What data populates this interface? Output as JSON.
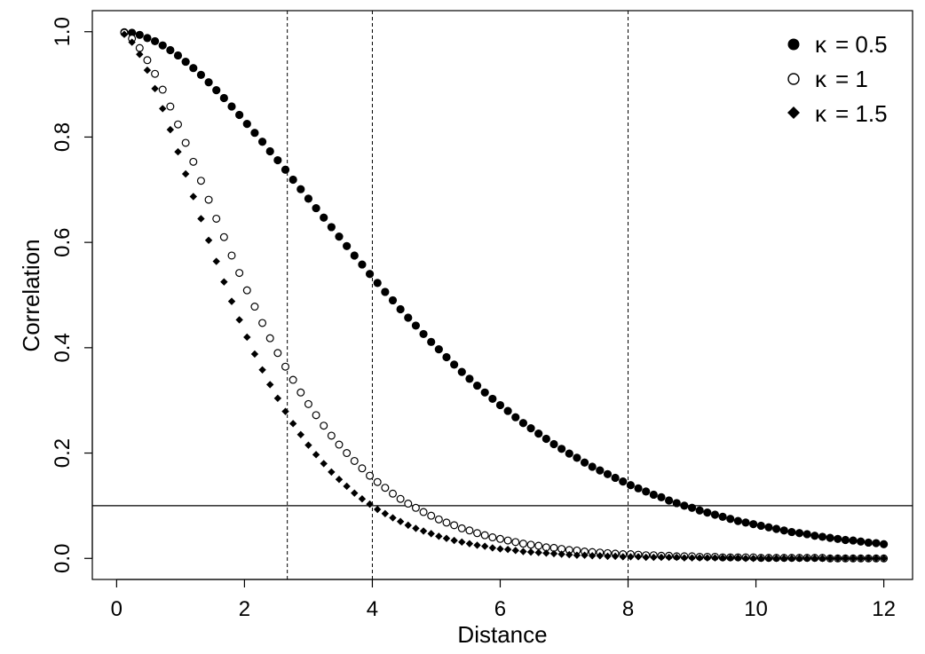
{
  "chart_data": {
    "type": "scatter",
    "title": "",
    "xlabel": "Distance",
    "ylabel": "Correlation",
    "xlim": [
      -0.38,
      12.45
    ],
    "ylim": [
      -0.04,
      1.04
    ],
    "xticks": [
      0,
      2,
      4,
      6,
      8,
      10,
      12
    ],
    "xtick_labels": [
      "0",
      "2",
      "4",
      "6",
      "8",
      "10",
      "12"
    ],
    "yticks": [
      0.0,
      0.2,
      0.4,
      0.6,
      0.8,
      1.0
    ],
    "ytick_labels": [
      "0.0",
      "0.2",
      "0.4",
      "0.6",
      "0.8",
      "1.0"
    ],
    "legend_position": "top-right",
    "reference_lines": {
      "horizontal": [
        {
          "y": 0.1,
          "style": "solid"
        }
      ],
      "vertical": [
        {
          "x": 2.67,
          "style": "dashed"
        },
        {
          "x": 4,
          "style": "dashed"
        },
        {
          "x": 8,
          "style": "dashed"
        }
      ]
    },
    "x": [
      0.12,
      0.24,
      0.36,
      0.48,
      0.6,
      0.72,
      0.84,
      0.96,
      1.08,
      1.2,
      1.32,
      1.44,
      1.56,
      1.68,
      1.8,
      1.92,
      2.04,
      2.16,
      2.28,
      2.4,
      2.52,
      2.64,
      2.76,
      2.88,
      3.0,
      3.12,
      3.24,
      3.36,
      3.48,
      3.6,
      3.72,
      3.84,
      3.96,
      4.08,
      4.2,
      4.32,
      4.44,
      4.56,
      4.68,
      4.8,
      4.92,
      5.04,
      5.16,
      5.28,
      5.4,
      5.52,
      5.64,
      5.76,
      5.88,
      6.0,
      6.12,
      6.24,
      6.36,
      6.48,
      6.6,
      6.72,
      6.84,
      6.96,
      7.08,
      7.2,
      7.32,
      7.44,
      7.56,
      7.68,
      7.8,
      7.92,
      8.04,
      8.16,
      8.28,
      8.4,
      8.52,
      8.64,
      8.76,
      8.88,
      9.0,
      9.12,
      9.24,
      9.36,
      9.48,
      9.6,
      9.72,
      9.84,
      9.96,
      10.08,
      10.2,
      10.32,
      10.44,
      10.56,
      10.68,
      10.8,
      10.92,
      11.04,
      11.16,
      11.28,
      11.4,
      11.52,
      11.64,
      11.76,
      11.88,
      12.0
    ],
    "series": [
      {
        "name": "κ = 0.5",
        "kappa_label": "κ",
        "value_label": "= 0.5",
        "marker": "filled-circle",
        "values": [
          0.999,
          0.998,
          0.994,
          0.988,
          0.982,
          0.974,
          0.965,
          0.955,
          0.943,
          0.931,
          0.918,
          0.904,
          0.889,
          0.874,
          0.858,
          0.842,
          0.825,
          0.808,
          0.791,
          0.773,
          0.756,
          0.738,
          0.719,
          0.701,
          0.683,
          0.665,
          0.647,
          0.629,
          0.611,
          0.593,
          0.575,
          0.558,
          0.54,
          0.523,
          0.506,
          0.49,
          0.473,
          0.457,
          0.442,
          0.426,
          0.411,
          0.397,
          0.382,
          0.368,
          0.354,
          0.341,
          0.328,
          0.315,
          0.303,
          0.291,
          0.28,
          0.268,
          0.257,
          0.247,
          0.237,
          0.227,
          0.217,
          0.208,
          0.199,
          0.191,
          0.182,
          0.174,
          0.167,
          0.16,
          0.153,
          0.146,
          0.139,
          0.133,
          0.127,
          0.121,
          0.116,
          0.11,
          0.105,
          0.1,
          0.096,
          0.091,
          0.087,
          0.083,
          0.079,
          0.075,
          0.071,
          0.068,
          0.065,
          0.062,
          0.059,
          0.056,
          0.053,
          0.05,
          0.048,
          0.046,
          0.043,
          0.041,
          0.039,
          0.037,
          0.035,
          0.034,
          0.032,
          0.03,
          0.029,
          0.027
        ]
      },
      {
        "name": "κ = 1",
        "kappa_label": "κ",
        "value_label": "= 1",
        "marker": "open-circle",
        "values": [
          0.998,
          0.987,
          0.969,
          0.946,
          0.92,
          0.89,
          0.858,
          0.824,
          0.789,
          0.753,
          0.717,
          0.681,
          0.645,
          0.61,
          0.575,
          0.542,
          0.509,
          0.478,
          0.447,
          0.418,
          0.39,
          0.364,
          0.339,
          0.315,
          0.293,
          0.272,
          0.252,
          0.233,
          0.216,
          0.2,
          0.185,
          0.171,
          0.157,
          0.145,
          0.134,
          0.123,
          0.113,
          0.104,
          0.096,
          0.088,
          0.081,
          0.074,
          0.068,
          0.063,
          0.057,
          0.053,
          0.048,
          0.044,
          0.04,
          0.037,
          0.034,
          0.031,
          0.028,
          0.026,
          0.024,
          0.021,
          0.02,
          0.018,
          0.016,
          0.015,
          0.013,
          0.012,
          0.011,
          0.01,
          0.009,
          0.008,
          0.008,
          0.007,
          0.006,
          0.006,
          0.005,
          0.005,
          0.004,
          0.004,
          0.004,
          0.003,
          0.003,
          0.003,
          0.002,
          0.002,
          0.002,
          0.002,
          0.002,
          0.001,
          0.001,
          0.001,
          0.001,
          0.001,
          0.001,
          0.001,
          0.001,
          0.001,
          0.0,
          0.0,
          0.0,
          0.0,
          0.0,
          0.0,
          0.0,
          0.0
        ]
      },
      {
        "name": "κ = 1.5",
        "kappa_label": "κ",
        "value_label": "= 1.5",
        "marker": "filled-diamond",
        "values": [
          0.995,
          0.98,
          0.957,
          0.927,
          0.892,
          0.854,
          0.814,
          0.772,
          0.73,
          0.687,
          0.645,
          0.604,
          0.564,
          0.525,
          0.488,
          0.453,
          0.42,
          0.388,
          0.358,
          0.33,
          0.304,
          0.279,
          0.256,
          0.235,
          0.215,
          0.197,
          0.18,
          0.164,
          0.15,
          0.137,
          0.124,
          0.113,
          0.103,
          0.093,
          0.085,
          0.077,
          0.07,
          0.063,
          0.057,
          0.052,
          0.047,
          0.042,
          0.038,
          0.034,
          0.031,
          0.028,
          0.025,
          0.023,
          0.02,
          0.018,
          0.017,
          0.015,
          0.013,
          0.012,
          0.011,
          0.01,
          0.009,
          0.008,
          0.007,
          0.006,
          0.006,
          0.005,
          0.005,
          0.004,
          0.004,
          0.003,
          0.003,
          0.003,
          0.002,
          0.002,
          0.002,
          0.002,
          0.002,
          0.001,
          0.001,
          0.001,
          0.001,
          0.001,
          0.001,
          0.001,
          0.001,
          0.0,
          0.0,
          0.0,
          0.0,
          0.0,
          0.0,
          0.0,
          0.0,
          0.0,
          0.0,
          0.0,
          0.0,
          0.0,
          0.0,
          0.0,
          0.0,
          0.0,
          0.0,
          0.0
        ]
      }
    ]
  }
}
